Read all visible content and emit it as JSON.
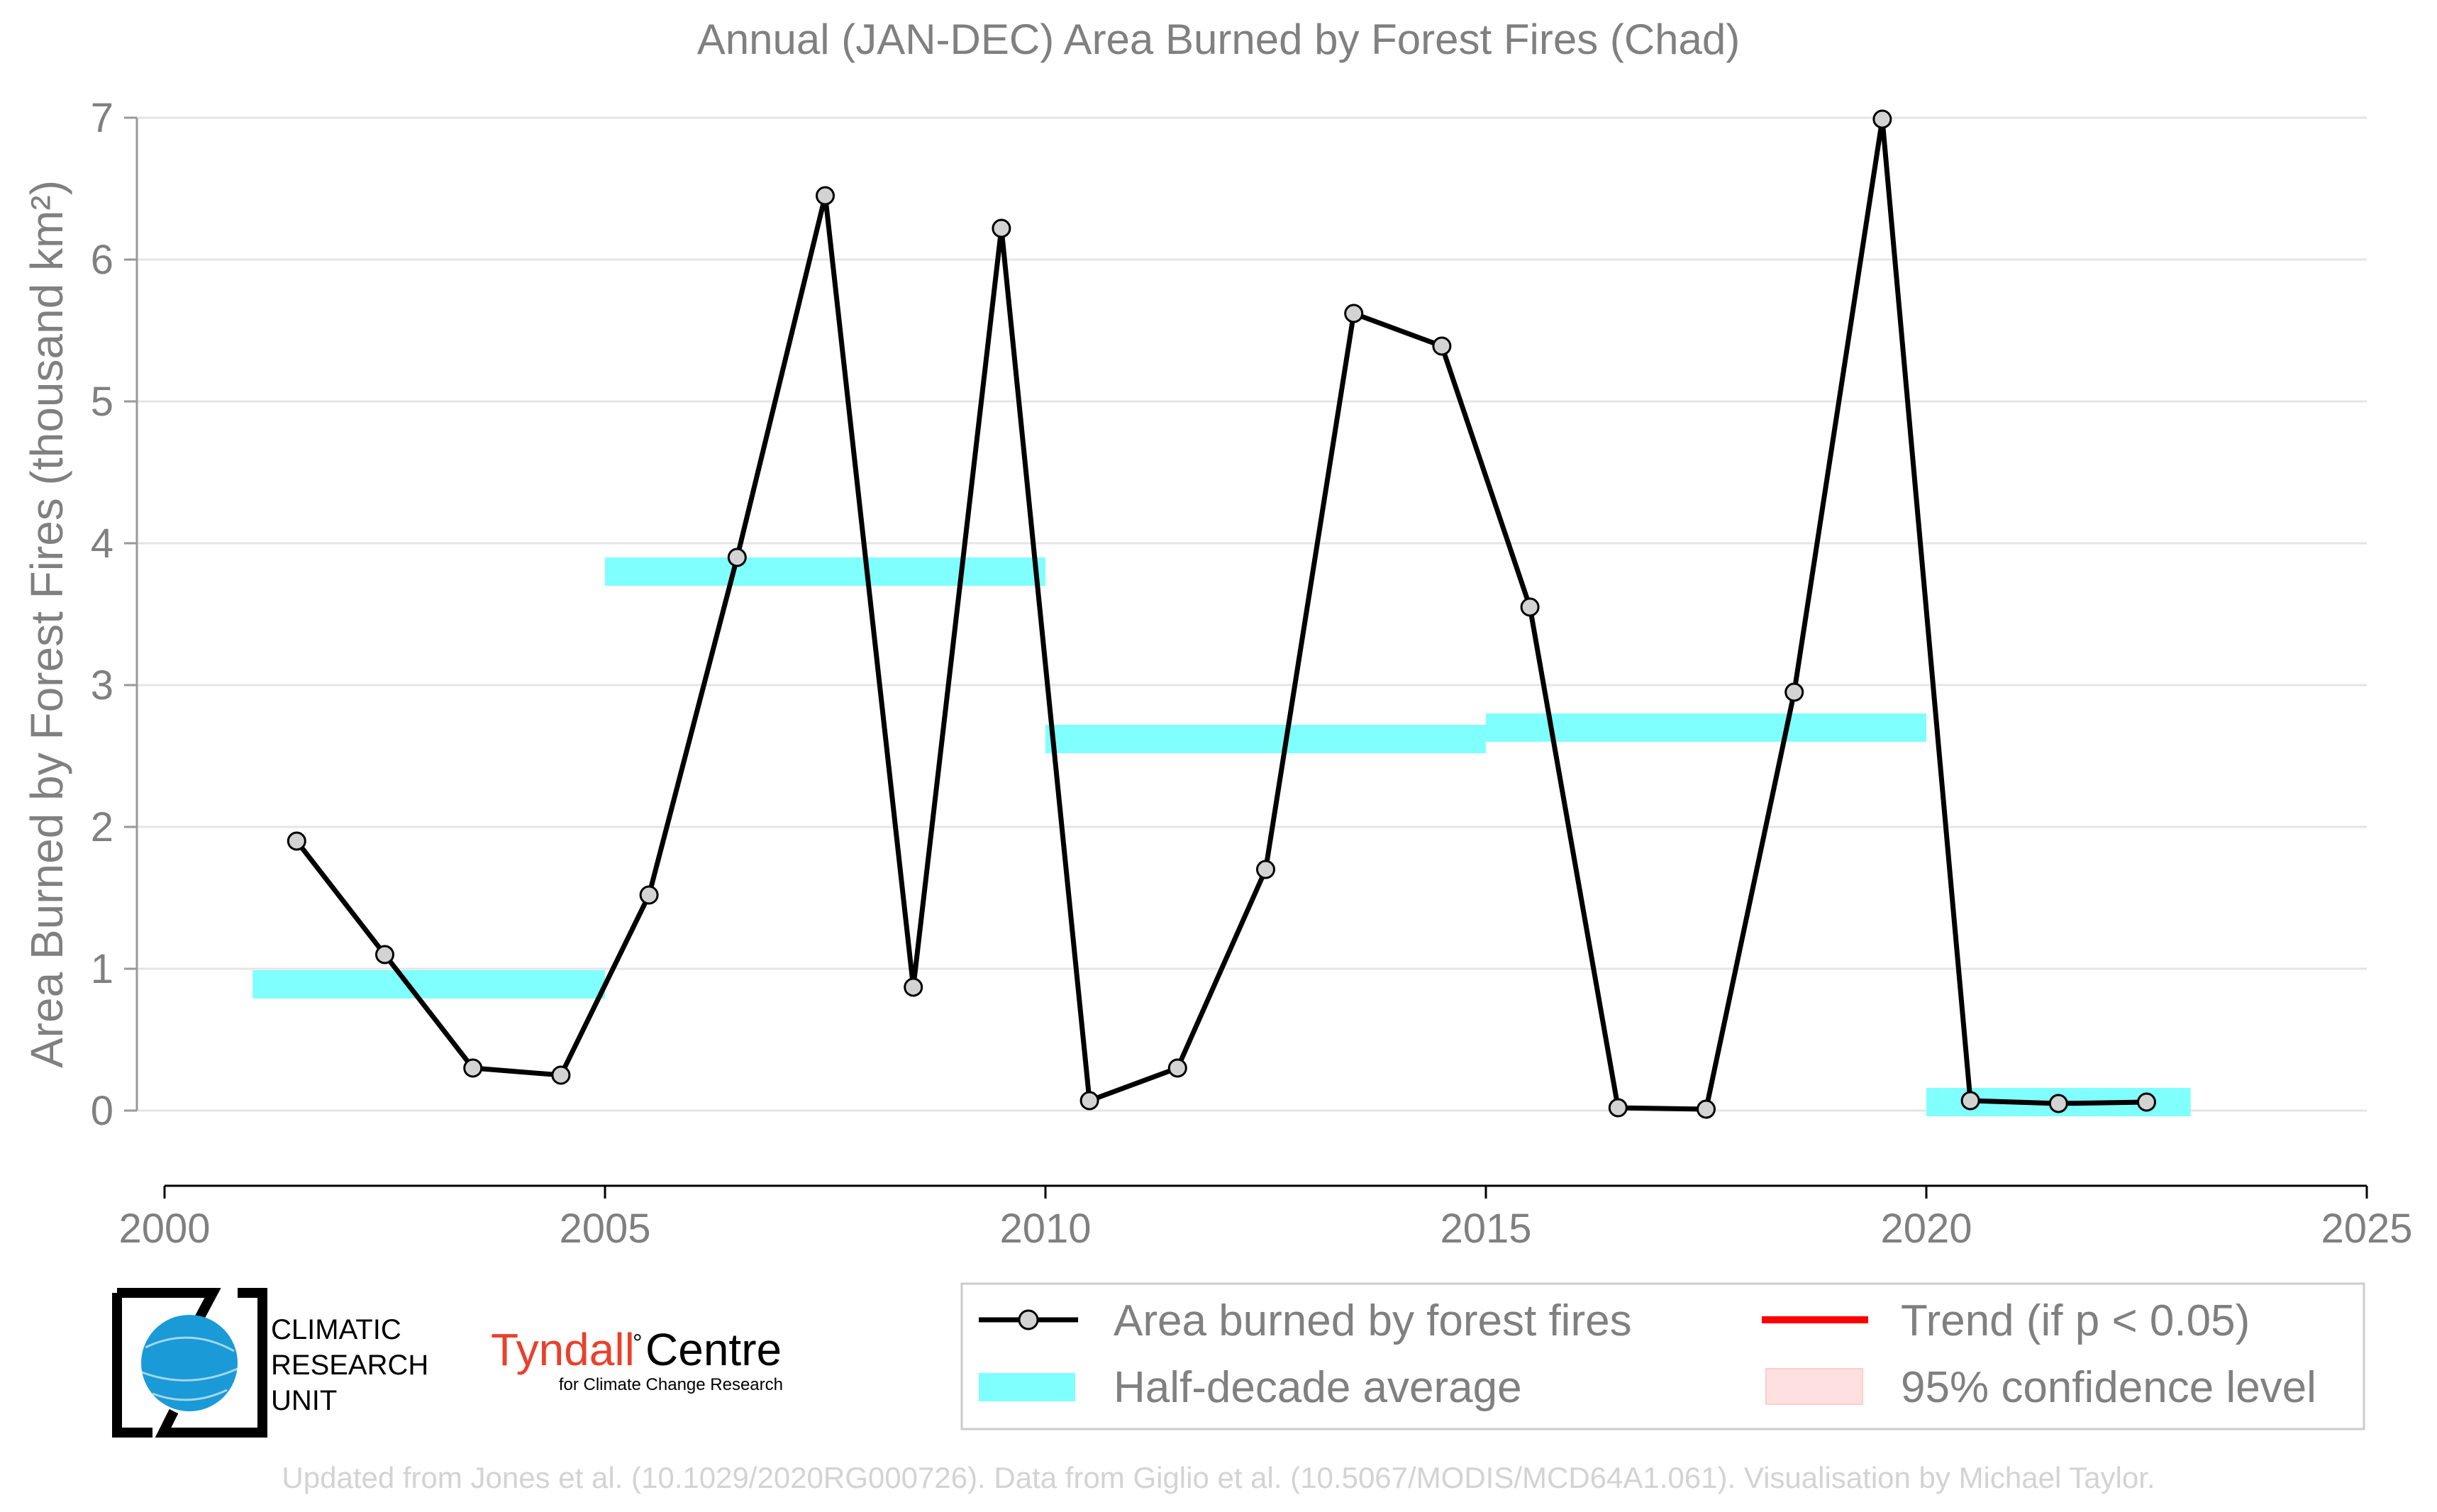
{
  "chart_data": {
    "type": "line",
    "title": "Annual (JAN-DEC) Area Burned by Forest Fires (Chad)",
    "ylabel": "Area Burned by Forest Fires (thousand km²)",
    "xlabel": "",
    "xlim": [
      2000,
      2025
    ],
    "ylim": [
      0,
      7
    ],
    "x_ticks": [
      "2000",
      "2005",
      "2010",
      "2015",
      "2020",
      "2025"
    ],
    "y_ticks": [
      "0",
      "1",
      "2",
      "3",
      "4",
      "5",
      "6",
      "7"
    ],
    "grid": "horizontal",
    "series": [
      {
        "name": "Area burned by forest fires",
        "x": [
          2001.5,
          2002.5,
          2003.5,
          2004.5,
          2005.5,
          2006.5,
          2007.5,
          2008.5,
          2009.5,
          2010.5,
          2011.5,
          2012.5,
          2013.5,
          2014.5,
          2015.5,
          2016.5,
          2017.5,
          2018.5,
          2019.5,
          2020.5,
          2021.5,
          2022.5
        ],
        "values": [
          1.9,
          1.1,
          0.3,
          0.25,
          1.52,
          3.9,
          6.45,
          0.87,
          6.22,
          0.07,
          0.3,
          1.7,
          5.62,
          5.39,
          3.55,
          0.02,
          0.01,
          2.95,
          6.99,
          0.07,
          0.05,
          0.06
        ]
      },
      {
        "name": "Half-decade average",
        "segments": [
          {
            "x0": 2001,
            "x1": 2005,
            "value": 0.89
          },
          {
            "x0": 2005,
            "x1": 2010,
            "value": 3.8
          },
          {
            "x0": 2010,
            "x1": 2015,
            "value": 2.62
          },
          {
            "x0": 2015,
            "x1": 2020,
            "value": 2.7
          },
          {
            "x0": 2020,
            "x1": 2023,
            "value": 0.06
          }
        ]
      }
    ],
    "legend": {
      "placement": "bottom-right",
      "items": [
        "Area burned by forest fires",
        "Half-decade average",
        "Trend (if p < 0.05)",
        "95% confidence level"
      ]
    },
    "colors": {
      "line": "#000000",
      "marker_fill": "#d3d3d3",
      "half_decade": "#80ffff",
      "trend": "#ff0000",
      "confidence": "#ffe0e0",
      "grid": "#e5e5e5",
      "text": "#808080"
    }
  },
  "logos": {
    "cru_lines": [
      "CLIMATIC",
      "RESEARCH",
      "UNIT"
    ],
    "tyndall_name": "Tyndall",
    "tyndall_suffix": "Centre",
    "tyndall_sub": "for Climate Change Research"
  },
  "credit": "Updated from Jones et al. (10.1029/2020RG000726). Data from Giglio et al. (10.5067/MODIS/MCD64A1.061). Visualisation by Michael Taylor."
}
